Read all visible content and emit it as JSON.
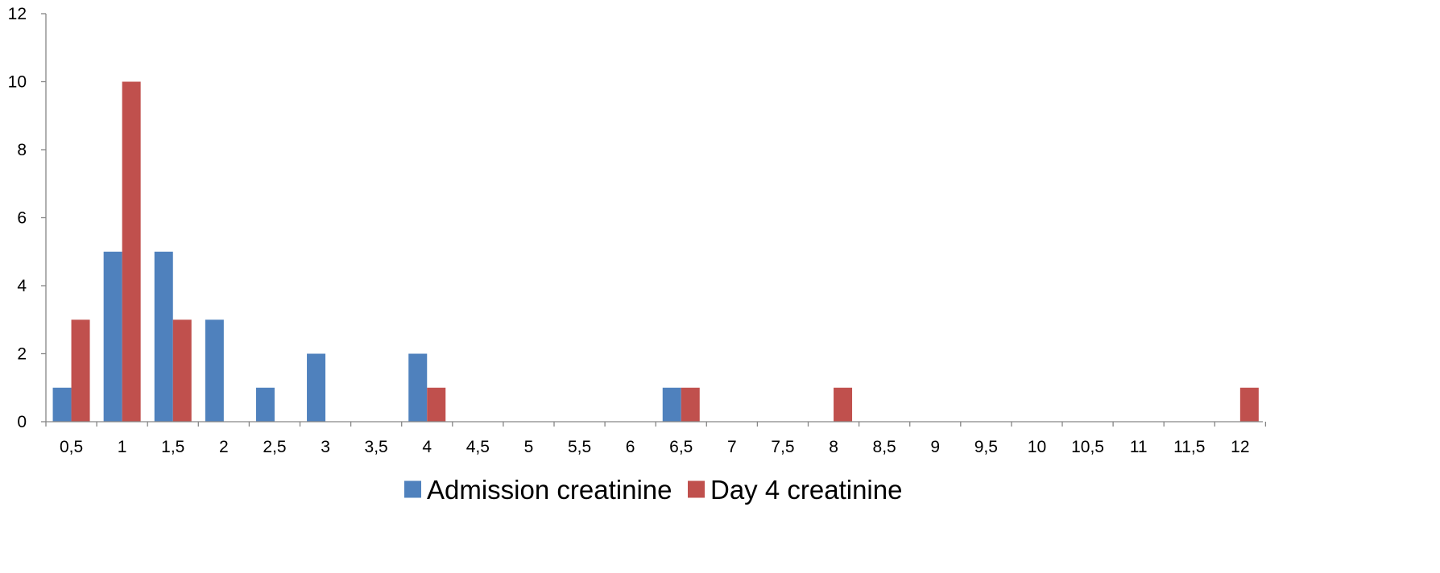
{
  "chart_data": {
    "type": "bar",
    "title": "",
    "xlabel": "",
    "ylabel": "",
    "categories": [
      "0,5",
      "1",
      "1,5",
      "2",
      "2,5",
      "3",
      "3,5",
      "4",
      "4,5",
      "5",
      "5,5",
      "6",
      "6,5",
      "7",
      "7,5",
      "8",
      "8,5",
      "9",
      "9,5",
      "10",
      "10,5",
      "11",
      "11,5",
      "12"
    ],
    "series": [
      {
        "name": "Admission creatinine",
        "color": "#4F81BD",
        "values": [
          1,
          5,
          5,
          3,
          1,
          2,
          0,
          2,
          0,
          0,
          0,
          0,
          1,
          0,
          0,
          0,
          0,
          0,
          0,
          0,
          0,
          0,
          0,
          0
        ]
      },
      {
        "name": "Day 4 creatinine",
        "color": "#C0504D",
        "values": [
          3,
          10,
          3,
          0,
          0,
          0,
          0,
          1,
          0,
          0,
          0,
          0,
          1,
          0,
          0,
          1,
          0,
          0,
          0,
          0,
          0,
          0,
          0,
          1
        ]
      }
    ],
    "ylim": [
      0,
      12
    ],
    "yticks": [
      0,
      2,
      4,
      6,
      8,
      10,
      12
    ],
    "grid": false,
    "legend_position": "bottom",
    "axis_color": "#868686"
  }
}
